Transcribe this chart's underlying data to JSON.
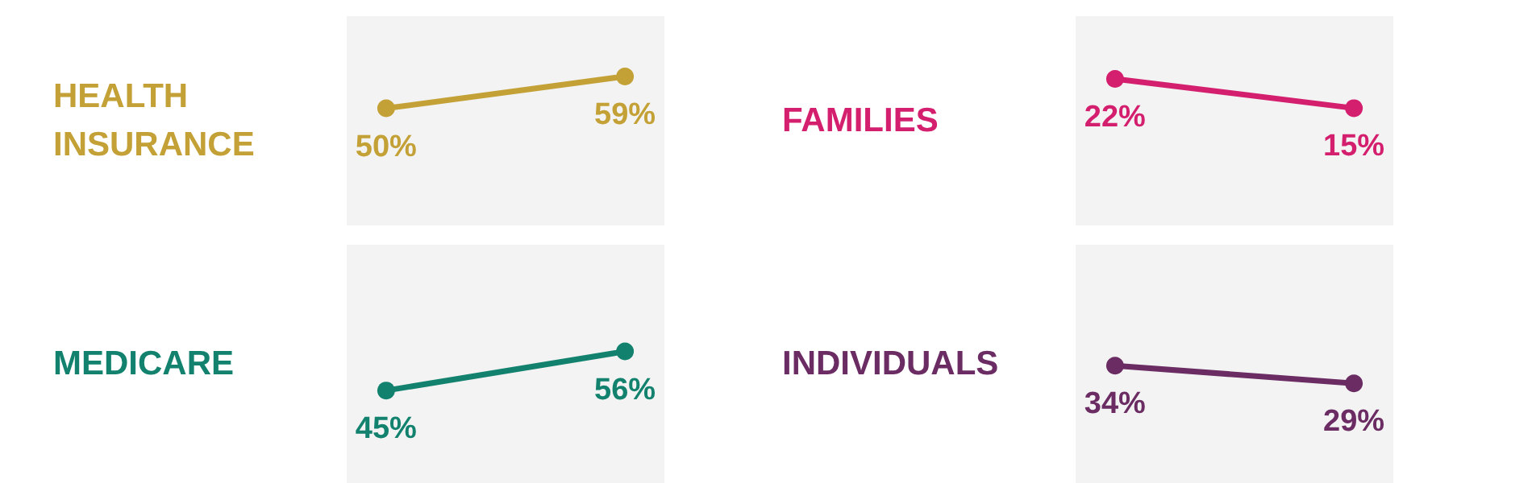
{
  "chart_data": [
    {
      "type": "line",
      "title": "HEALTH INSURANCE",
      "categories": [
        null,
        null
      ],
      "values": [
        50,
        59
      ],
      "value_labels": [
        "50%",
        "59%"
      ],
      "color": "#c4a136",
      "ylim": [
        17,
        76
      ],
      "marker": "circle"
    },
    {
      "type": "line",
      "title": "FAMILIES",
      "categories": [
        null,
        null
      ],
      "values": [
        22,
        15
      ],
      "value_labels": [
        "22%",
        "15%"
      ],
      "color": "#d41f6e",
      "ylim": [
        -13,
        37
      ],
      "marker": "circle"
    },
    {
      "type": "line",
      "title": "MEDICARE",
      "categories": [
        null,
        null
      ],
      "values": [
        45,
        56
      ],
      "value_labels": [
        "45%",
        "56%"
      ],
      "color": "#12826f",
      "ylim": [
        19,
        86
      ],
      "marker": "circle"
    },
    {
      "type": "line",
      "title": "INDIVIDUALS",
      "categories": [
        null,
        null
      ],
      "values": [
        34,
        29
      ],
      "value_labels": [
        "34%",
        "29%"
      ],
      "color": "#6a2c63",
      "ylim": [
        1,
        68
      ],
      "marker": "circle"
    }
  ]
}
